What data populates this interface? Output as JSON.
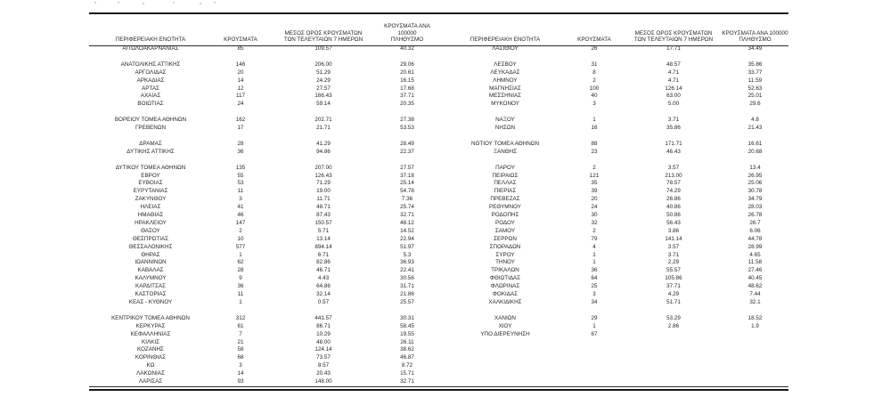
{
  "page": {
    "background_color": "#ffffff",
    "text_color": "#262626",
    "rule_color": "#151515"
  },
  "table": {
    "headers": {
      "region": "ΠΕΡΙΦΕΡΕΙΑΚΗ ΕΝΟΤΗΤΑ",
      "cases": "ΚΡΟΥΣΜΑΤΑ",
      "avg7_line1": "ΜΕΣΟΣ ΟΡΟΣ ΚΡΟΥΣΜΑΤΩΝ",
      "avg7_line2": "ΤΩΝ ΤΕΛΕΥΤΑΙΩΝ 7 ΗΜΕΡΩΝ",
      "per100k_line1": "ΚΡΟΥΣΜΑΤΑ ΑΝΑ 100000",
      "per100k_line2": "ΠΛΗΘΥΣΜΟ"
    },
    "left_rows": [
      [
        "ΑΙΤΩΛΟΑΚΑΡΝΑΝΙΑΣ",
        "85",
        "109.57",
        "40.32"
      ],
      null,
      [
        "ΑΝΑΤΟΛΙΚΗΣ ΑΤΤΙΚΗΣ",
        "146",
        "206.00",
        "29.06"
      ],
      [
        "ΑΡΓΟΛΙΔΑΣ",
        "20",
        "51.29",
        "20.61"
      ],
      [
        "ΑΡΚΑΔΙΑΣ",
        "14",
        "24.29",
        "16.15"
      ],
      [
        "ΑΡΤΑΣ",
        "12",
        "27.57",
        "17.68"
      ],
      [
        "ΑΧΑΪΑΣ",
        "117",
        "166.43",
        "37.71"
      ],
      [
        "ΒΟΙΩΤΙΑΣ",
        "24",
        "59.14",
        "20.35"
      ],
      null,
      [
        "ΒΟΡΕΙΟΥ ΤΟΜΕΑ ΑΘΗΝΩΝ",
        "162",
        "202.71",
        "27.38"
      ],
      [
        "ΓΡΕΒΕΝΩΝ",
        "17",
        "21.71",
        "53.53"
      ],
      null,
      [
        "ΔΡΑΜΑΣ",
        "28",
        "41.29",
        "28.49"
      ],
      [
        "ΔΥΤΙΚΗΣ ΑΤΤΙΚΗΣ",
        "36",
        "94.86",
        "22.37"
      ],
      null,
      [
        "ΔΥΤΙΚΟΥ ΤΟΜΕΑ ΑΘΗΝΩΝ",
        "135",
        "207.00",
        "27.57"
      ],
      [
        "ΕΒΡΟΥ",
        "55",
        "126.43",
        "37.18"
      ],
      [
        "ΕΥΒΟΙΑΣ",
        "53",
        "71.29",
        "25.14"
      ],
      [
        "ΕΥΡΥΤΑΝΙΑΣ",
        "11",
        "19.00",
        "54.78"
      ],
      [
        "ΖΑΚΥΝΘΟΥ",
        "3",
        "11.71",
        "7.36"
      ],
      [
        "ΗΛΕΙΑΣ",
        "41",
        "48.71",
        "25.74"
      ],
      [
        "ΗΜΑΘΙΑΣ",
        "46",
        "87.43",
        "32.71"
      ],
      [
        "ΗΡΑΚΛΕΙΟΥ",
        "147",
        "150.57",
        "48.12"
      ],
      [
        "ΘΑΣΟΥ",
        "2",
        "5.71",
        "14.52"
      ],
      [
        "ΘΕΣΠΡΩΤΙΑΣ",
        "10",
        "13.14",
        "22.94"
      ],
      [
        "ΘΕΣΣΑΛΟΝΙΚΗΣ",
        "577",
        "894.14",
        "51.97"
      ],
      [
        "ΘΗΡΑΣ",
        "1",
        "6.71",
        "5.3"
      ],
      [
        "ΙΩΑΝΝΙΝΩΝ",
        "62",
        "82.86",
        "36.93"
      ],
      [
        "ΚΑΒΑΛΑΣ",
        "28",
        "46.71",
        "22.41"
      ],
      [
        "ΚΑΛΥΜΝΟΥ",
        "9",
        "4.43",
        "30.56"
      ],
      [
        "ΚΑΡΔΙΤΣΑΣ",
        "36",
        "64.86",
        "31.71"
      ],
      [
        "ΚΑΣΤΟΡΙΑΣ",
        "11",
        "32.14",
        "21.86"
      ],
      [
        "ΚΕΑΣ - ΚΥΘΝΟΥ",
        "1",
        "0.57",
        "25.57"
      ],
      null,
      [
        "ΚΕΝΤΡΙΚΟΥ ΤΟΜΕΑ ΑΘΗΝΩΝ",
        "312",
        "441.57",
        "30.31"
      ],
      [
        "ΚΕΡΚΥΡΑΣ",
        "61",
        "86.71",
        "58.45"
      ],
      [
        "ΚΕΦΑΛΛΗΝΙΑΣ",
        "7",
        "10.29",
        "19.55"
      ],
      [
        "ΚΙΛΚΙΣ",
        "21",
        "48.00",
        "26.11"
      ],
      [
        "ΚΟΖΑΝΗΣ",
        "58",
        "124.14",
        "38.62"
      ],
      [
        "ΚΟΡΙΝΘΙΑΣ",
        "68",
        "73.57",
        "46.87"
      ],
      [
        "ΚΩ",
        "3",
        "8.57",
        "8.72"
      ],
      [
        "ΛΑΚΩΝΙΑΣ",
        "14",
        "20.43",
        "15.71"
      ],
      [
        "ΛΑΡΙΣΑΣ",
        "93",
        "148.00",
        "32.71"
      ]
    ],
    "right_rows": [
      [
        "ΛΑΣΙΘΙΟΥ",
        "26",
        "17.71",
        "34.49"
      ],
      null,
      [
        "ΛΕΣΒΟΥ",
        "31",
        "48.57",
        "35.86"
      ],
      [
        "ΛΕΥΚΑΔΑΣ",
        "8",
        "4.71",
        "33.77"
      ],
      [
        "ΛΗΜΝΟΥ",
        "2",
        "4.71",
        "11.59"
      ],
      [
        "ΜΑΓΝΗΣΙΑΣ",
        "100",
        "126.14",
        "52.63"
      ],
      [
        "ΜΕΣΣΗΝΙΑΣ",
        "40",
        "63.00",
        "25.01"
      ],
      [
        "ΜΥΚΟΝΟΥ",
        "3",
        "5.00",
        "29.6"
      ],
      null,
      [
        "ΝΑΞΟΥ",
        "1",
        "3.71",
        "4.8"
      ],
      [
        "ΝΗΣΩΝ",
        "16",
        "35.86",
        "21.43"
      ],
      null,
      [
        "ΝΟΤΙΟΥ ΤΟΜΕΑ ΑΘΗΝΩΝ",
        "88",
        "171.71",
        "16.61"
      ],
      [
        "ΞΑΝΘΗΣ",
        "23",
        "46.43",
        "20.68"
      ],
      null,
      [
        "ΠΑΡΟΥ",
        "2",
        "3.57",
        "13.4"
      ],
      [
        "ΠΕΙΡΑΙΩΣ",
        "121",
        "213.00",
        "26.95"
      ],
      [
        "ΠΕΛΛΑΣ",
        "35",
        "78.57",
        "25.06"
      ],
      [
        "ΠΙΕΡΙΑΣ",
        "39",
        "74.29",
        "30.78"
      ],
      [
        "ΠΡΕΒΕΖΑΣ",
        "20",
        "26.86",
        "34.79"
      ],
      [
        "ΡΕΘΥΜΝΟΥ",
        "24",
        "40.86",
        "28.03"
      ],
      [
        "ΡΟΔΟΠΗΣ",
        "30",
        "50.86",
        "26.78"
      ],
      [
        "ΡΟΔΟΥ",
        "32",
        "56.43",
        "26.7"
      ],
      [
        "ΣΑΜΟΥ",
        "2",
        "3.86",
        "6.06"
      ],
      [
        "ΣΕΡΡΩΝ",
        "79",
        "141.14",
        "44.78"
      ],
      [
        "ΣΠΟΡΑΔΩΝ",
        "4",
        "3.57",
        "28.99"
      ],
      [
        "ΣΥΡΟΥ",
        "1",
        "3.71",
        "4.65"
      ],
      [
        "ΤΗΝΟΥ",
        "1",
        "2.29",
        "11.58"
      ],
      [
        "ΤΡΙΚΑΛΩΝ",
        "36",
        "55.57",
        "27.46"
      ],
      [
        "ΦΘΙΩΤΙΔΑΣ",
        "64",
        "105.86",
        "40.45"
      ],
      [
        "ΦΛΩΡΙΝΑΣ",
        "25",
        "37.71",
        "48.62"
      ],
      [
        "ΦΟΚΙΔΑΣ",
        "3",
        "4.29",
        "7.44"
      ],
      [
        "ΧΑΛΚΙΔΙΚΗΣ",
        "34",
        "51.71",
        "32.1"
      ],
      null,
      [
        "ΧΑΝΙΩΝ",
        "29",
        "53.29",
        "18.52"
      ],
      [
        "ΧΙΟΥ",
        "1",
        "2.86",
        "1.9"
      ],
      [
        "ΥΠΟ ΔΙΕΡΕΥΝΗΣΗ",
        "67",
        "",
        ""
      ],
      null,
      null,
      null,
      null,
      null,
      null
    ]
  }
}
